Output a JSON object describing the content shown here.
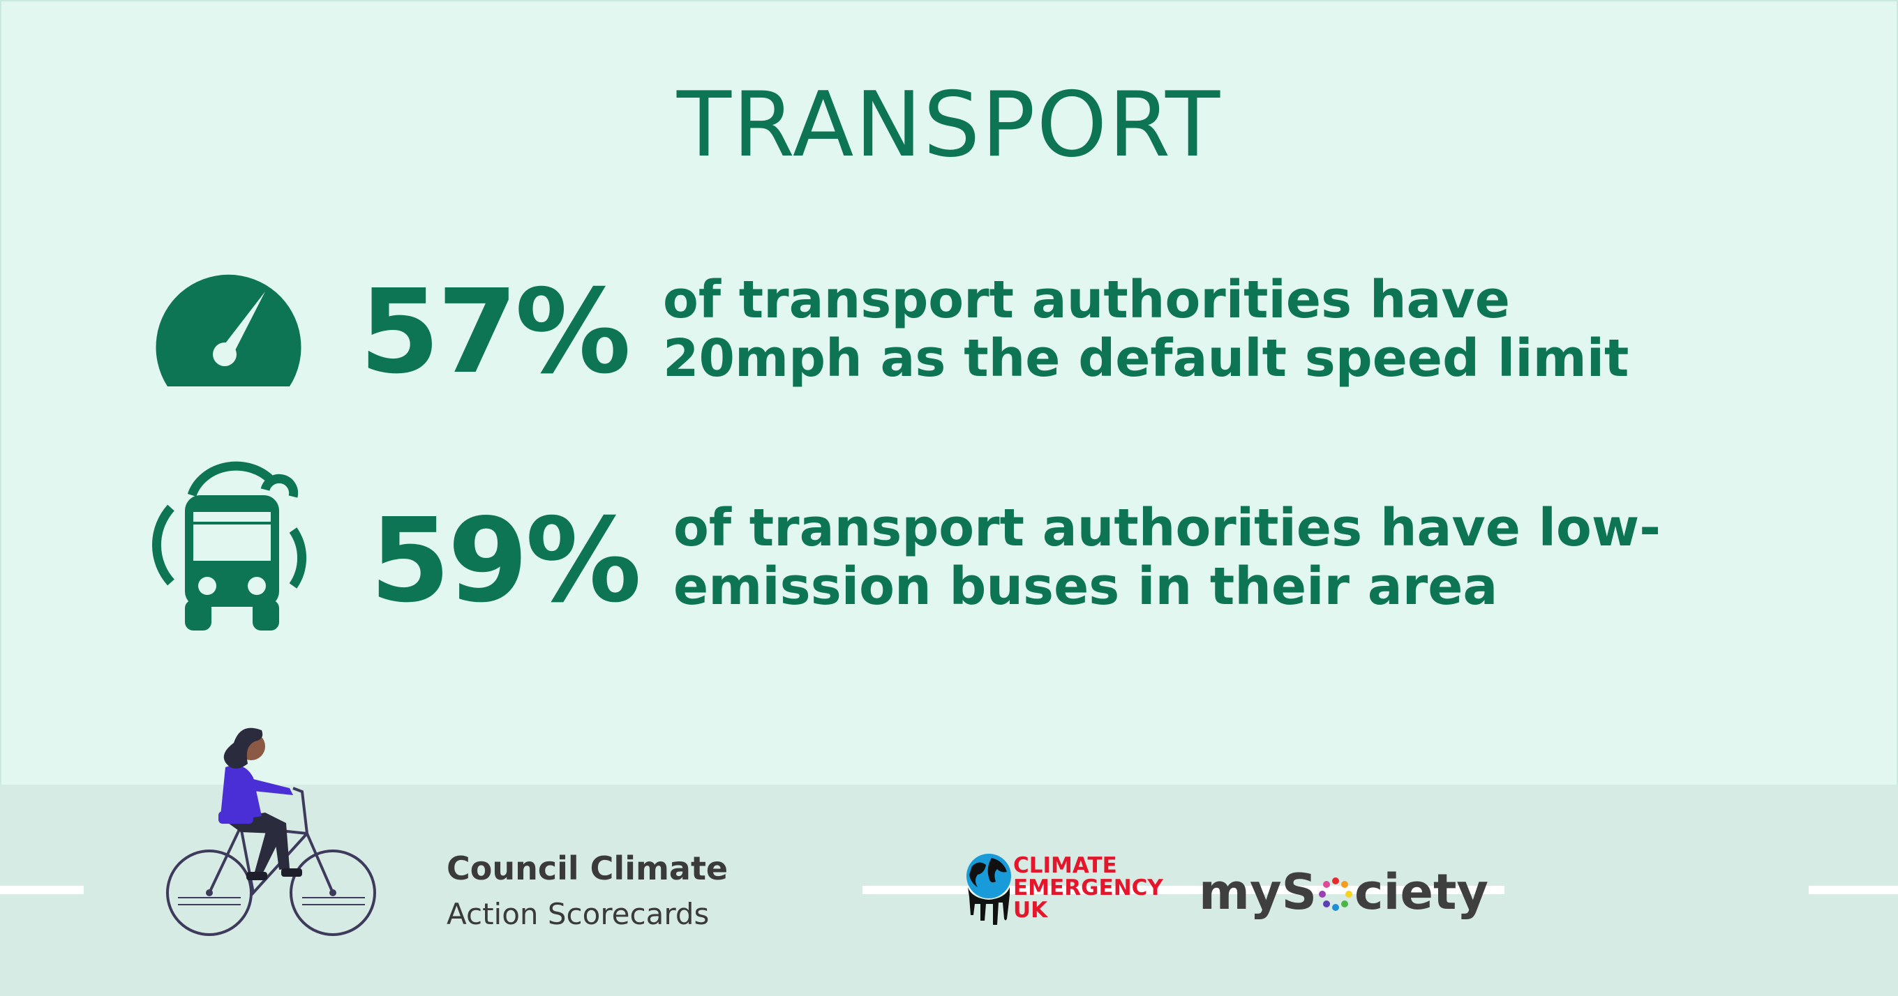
{
  "title": "TRANSPORT",
  "stats": [
    {
      "icon": "speedometer-icon",
      "percent": "57%",
      "line1": "of transport authorities have",
      "line2": "20mph as the default speed limit"
    },
    {
      "icon": "bus-icon",
      "percent": "59%",
      "line1": "of transport authorities have low-",
      "line2": "emission buses in their area"
    }
  ],
  "footer": {
    "brand_line1": "Council Climate",
    "brand_line2": "Action Scorecards",
    "partner1_line1": "CLIMATE",
    "partner1_line2": "EMERGENCY",
    "partner1_line3": "UK",
    "partner2_before": "myS",
    "partner2_after": "ciety"
  },
  "colors": {
    "background": "#e1f7ef",
    "accent": "#0d7553",
    "footer": "#d6ebe3",
    "cyclist_top": "#4b2fd6",
    "ceuk_red": "#e5162b"
  }
}
